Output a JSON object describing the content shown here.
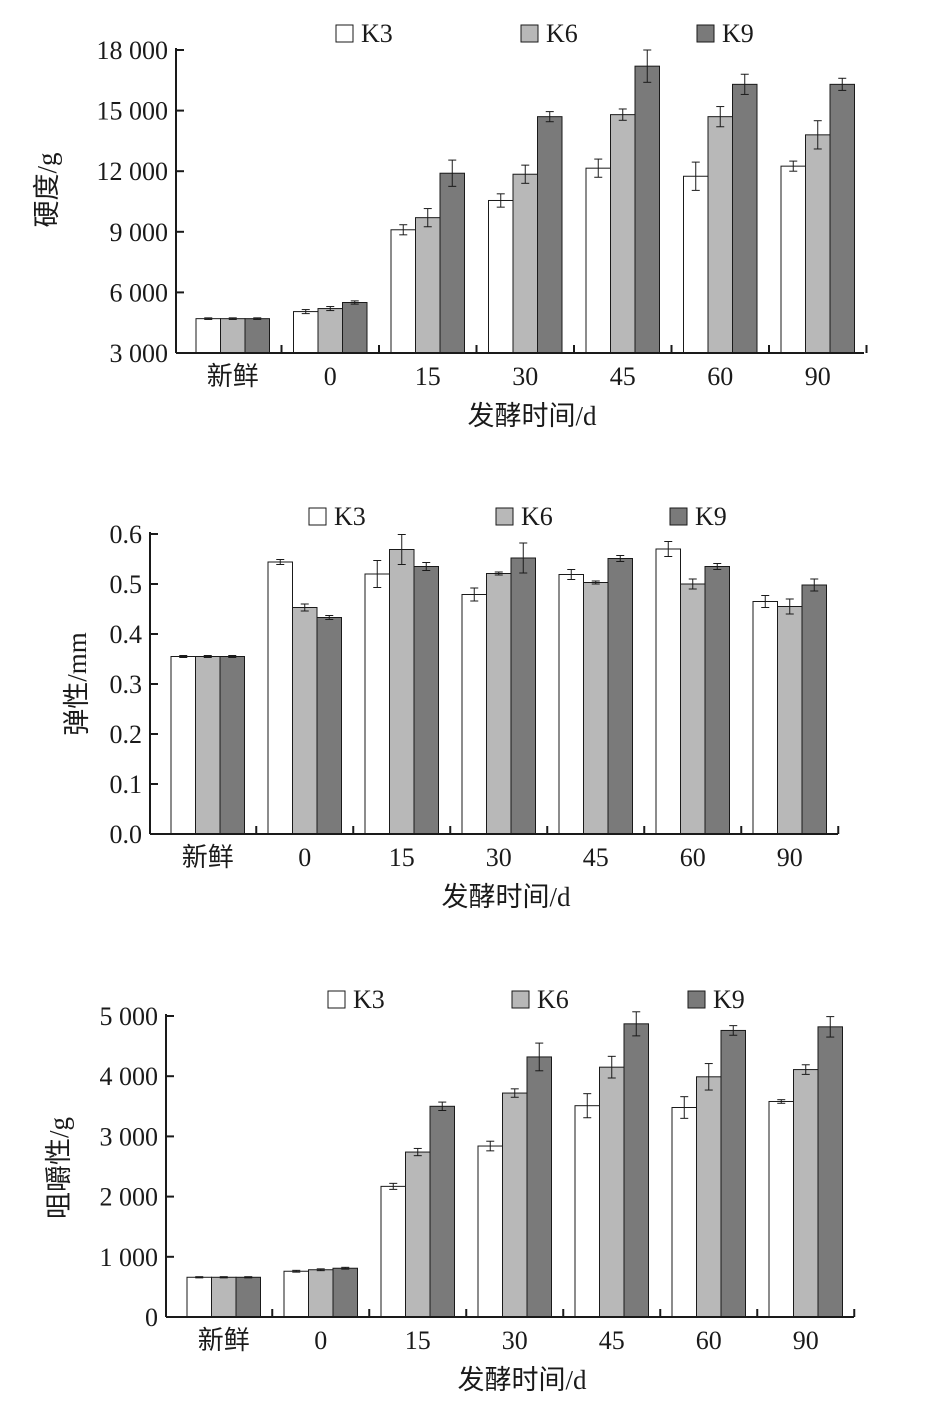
{
  "colors": {
    "K3": "#ffffff",
    "K6": "#b8b8b8",
    "K9": "#7a7a7a",
    "axis": "#1a1a1a"
  },
  "chart_data": [
    {
      "type": "bar",
      "categories": [
        "新鲜",
        "0",
        "15",
        "30",
        "45",
        "60",
        "90"
      ],
      "series": [
        {
          "name": "K3",
          "values": [
            4700,
            5050,
            9100,
            10550,
            12150,
            11750,
            12250
          ],
          "errors": [
            40,
            100,
            250,
            330,
            450,
            700,
            250
          ]
        },
        {
          "name": "K6",
          "values": [
            4700,
            5200,
            9700,
            11850,
            14800,
            14700,
            13800
          ],
          "errors": [
            40,
            100,
            450,
            450,
            280,
            500,
            700
          ]
        },
        {
          "name": "K9",
          "values": [
            4700,
            5500,
            11900,
            14700,
            17200,
            16300,
            16300
          ],
          "errors": [
            40,
            80,
            650,
            250,
            800,
            500,
            300
          ]
        }
      ],
      "ylabel": "硬度/g",
      "xlabel": "发酵时间/d",
      "ylim": [
        3000,
        18000
      ],
      "yticks": [
        3000,
        6000,
        9000,
        12000,
        15000,
        18000
      ],
      "ytick_labels": [
        "3 000",
        "6 000",
        "9 000",
        "12 000",
        "15 000",
        "18 000"
      ],
      "legend_position": "top",
      "grid": false
    },
    {
      "type": "bar",
      "categories": [
        "新鲜",
        "0",
        "15",
        "30",
        "45",
        "60",
        "90"
      ],
      "series": [
        {
          "name": "K3",
          "values": [
            0.355,
            0.544,
            0.52,
            0.479,
            0.519,
            0.57,
            0.465
          ],
          "errors": [
            0.002,
            0.005,
            0.027,
            0.013,
            0.01,
            0.015,
            0.012
          ]
        },
        {
          "name": "K6",
          "values": [
            0.355,
            0.453,
            0.569,
            0.521,
            0.503,
            0.5,
            0.455
          ],
          "errors": [
            0.002,
            0.007,
            0.03,
            0.003,
            0.003,
            0.01,
            0.015
          ]
        },
        {
          "name": "K9",
          "values": [
            0.355,
            0.433,
            0.535,
            0.552,
            0.551,
            0.535,
            0.498
          ],
          "errors": [
            0.002,
            0.004,
            0.008,
            0.03,
            0.006,
            0.006,
            0.012
          ]
        }
      ],
      "ylabel": "弹性/mm",
      "xlabel": "发酵时间/d",
      "ylim": [
        0,
        0.6
      ],
      "yticks": [
        0,
        0.1,
        0.2,
        0.3,
        0.4,
        0.5,
        0.6
      ],
      "ytick_labels": [
        "0.0",
        "0.1",
        "0.2",
        "0.3",
        "0.4",
        "0.5",
        "0.6"
      ],
      "legend_position": "top",
      "grid": false
    },
    {
      "type": "bar",
      "categories": [
        "新鲜",
        "0",
        "15",
        "30",
        "45",
        "60",
        "90"
      ],
      "series": [
        {
          "name": "K3",
          "values": [
            660,
            760,
            2170,
            2840,
            3510,
            3480,
            3580
          ],
          "errors": [
            10,
            15,
            50,
            80,
            200,
            180,
            30
          ]
        },
        {
          "name": "K6",
          "values": [
            660,
            785,
            2740,
            3720,
            4150,
            3990,
            4110
          ],
          "errors": [
            10,
            15,
            60,
            70,
            180,
            220,
            80
          ]
        },
        {
          "name": "K9",
          "values": [
            660,
            810,
            3500,
            4320,
            4870,
            4760,
            4820
          ],
          "errors": [
            10,
            15,
            70,
            230,
            200,
            80,
            170
          ]
        }
      ],
      "ylabel": "咀嚼性/g",
      "xlabel": "发酵时间/d",
      "ylim": [
        0,
        5000
      ],
      "yticks": [
        0,
        1000,
        2000,
        3000,
        4000,
        5000
      ],
      "ytick_labels": [
        "0",
        "1 000",
        "2 000",
        "3 000",
        "4 000",
        "5 000"
      ],
      "legend_position": "top",
      "grid": false
    }
  ]
}
